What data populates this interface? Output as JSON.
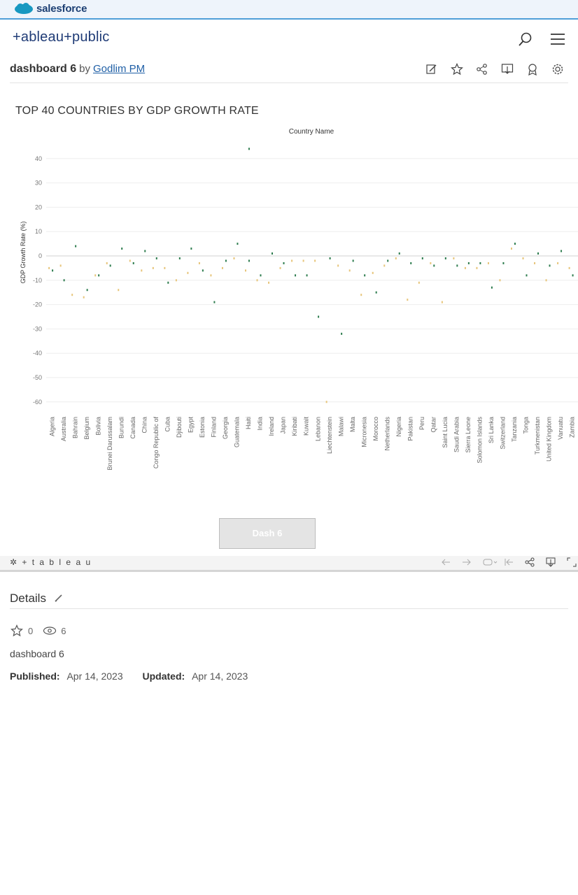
{
  "salesforce": {
    "brand": "salesforce"
  },
  "header": {
    "logo": "+ableau+public"
  },
  "viz": {
    "title": "dashboard 6",
    "by": "by",
    "author": "Godlim PM"
  },
  "toolbar_icons": [
    "edit-icon",
    "star-icon",
    "share-icon",
    "download-icon",
    "badge-icon",
    "settings-icon"
  ],
  "chart_data": {
    "type": "scatter",
    "title": "TOP 40 COUNTRIES BY GDP GROWTH RATE",
    "column_header": "Country Name",
    "ylabel": "GDP Growth Rate (%)",
    "ylim": [
      -62,
      46
    ],
    "yticks": [
      40,
      30,
      20,
      10,
      0,
      -10,
      -20,
      -30,
      -40,
      -50,
      -60
    ],
    "categories": [
      "Algeria",
      "Australia",
      "Bahrain",
      "Belgium",
      "Bolivia",
      "Brunei Darussalam",
      "Burundi",
      "Canada",
      "China",
      "Congo Republic of",
      "Cuba",
      "Djibouti",
      "Egypt",
      "Estonia",
      "Finland",
      "Georgia",
      "Guatemala",
      "Haiti",
      "India",
      "Ireland",
      "Japan",
      "Kiribati",
      "Kuwait",
      "Lebanon",
      "Liechtenstein",
      "Malawi",
      "Malta",
      "Micronesia",
      "Morocco",
      "Netherlands",
      "Nigeria",
      "Pakistan",
      "Peru",
      "Qatar",
      "Saint Lucia",
      "Saudi Arabia",
      "Sierra Leone",
      "Solomon Islands",
      "Sri Lanka",
      "Switzerland",
      "Tanzania",
      "Tonga",
      "Turkmenistan",
      "United Kingdom",
      "Vanuatu",
      "Zambia"
    ],
    "series": [
      {
        "color": "#2e7d4f",
        "values": [
          -6,
          -10,
          4,
          -14,
          -8,
          -4,
          3,
          -3,
          2,
          -1,
          -11,
          -1,
          3,
          -6,
          -19,
          -2,
          5,
          -2,
          -8,
          1,
          -3,
          -8,
          -8,
          -25,
          -1,
          -32,
          -2,
          -8,
          -15,
          -2,
          1,
          -3,
          -1,
          -4,
          -1,
          -4,
          -3,
          -3,
          -13,
          -3,
          5,
          -8,
          1,
          -4,
          2,
          -8
        ]
      },
      {
        "color": "#e7c57a",
        "values": [
          -5,
          -4,
          -16,
          -17,
          -8,
          -3,
          -14,
          -2,
          -6,
          -5,
          -5,
          -10,
          -7,
          -3,
          -8,
          -5,
          -1,
          -6,
          -10,
          -11,
          -5,
          -2,
          -2,
          -2,
          -60,
          -4,
          -6,
          -16,
          -7,
          -4,
          -1,
          -18,
          -11,
          -3,
          -19,
          -1,
          -5,
          -5,
          -3,
          -10,
          3,
          -1,
          -3,
          -10,
          -3,
          -5
        ]
      }
    ],
    "extra_points": [
      {
        "category": "Haiti",
        "value": 44,
        "color": "#2e7d4f"
      }
    ]
  },
  "dash_button": "Dash 6",
  "viz_toolbar": {
    "logo": "+ t a b l e a u"
  },
  "details": {
    "heading": "Details",
    "favorites": "0",
    "views": "6",
    "description": "dashboard 6",
    "published_label": "Published:",
    "published": "Apr 14, 2023",
    "updated_label": "Updated:",
    "updated": "Apr 14, 2023"
  }
}
